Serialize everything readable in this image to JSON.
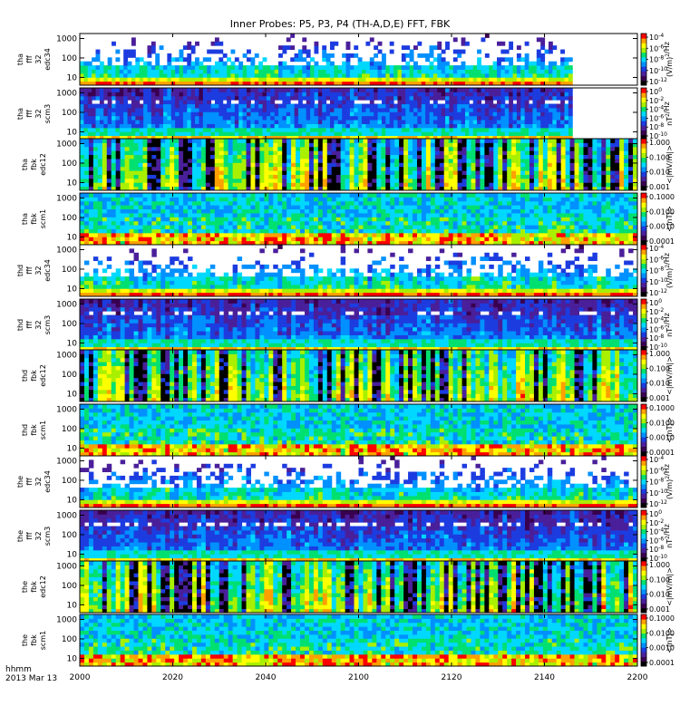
{
  "chart_data": {
    "type": "heatmap",
    "title": "Inner Probes: P5, P3, P4 (TH-A,D,E) FFT, FBK",
    "date_label": [
      "hhmm",
      "2013 Mar 13"
    ],
    "x_axis": {
      "range": [
        "2000",
        "2200"
      ],
      "ticks": [
        "2000",
        "2020",
        "2040",
        "2100",
        "2120",
        "2140",
        "2200"
      ]
    },
    "y_axis": {
      "scale": "log",
      "range": [
        4,
        1800
      ],
      "ticks": [
        "10",
        "100",
        "1000"
      ]
    },
    "colorscale": [
      "#000000",
      "#3a0050",
      "#4a1f9a",
      "#1c3ce0",
      "#0090ff",
      "#00d8ff",
      "#00e070",
      "#a8f000",
      "#ffff00",
      "#ffa000",
      "#ff0000"
    ],
    "panels": [
      {
        "labels": [
          "tha",
          "fff",
          "32",
          "edc34"
        ],
        "colorbar": {
          "ticks": [
            "10<sup>-4</sup>",
            "10<sup>-6</sup>",
            "10<sup>-8</sup>",
            "10<sup>-10</sup>",
            "10<sup>-12</sup>"
          ],
          "unit": "(V/m)<sup>2</sup>/Hz"
        },
        "data_end": "2146",
        "type": "fff_e"
      },
      {
        "labels": [
          "tha",
          "fff",
          "32",
          "scm3"
        ],
        "colorbar": {
          "ticks": [
            "10<sup>0</sup>",
            "10<sup>-2</sup>",
            "10<sup>-4</sup>",
            "10<sup>-6</sup>",
            "10<sup>-8</sup>",
            "10<sup>-10</sup>"
          ],
          "unit": "nT<sup>2</sup>/Hz"
        },
        "data_end": "2146",
        "type": "fff_b"
      },
      {
        "labels": [
          "tha",
          "fbk",
          "edc12"
        ],
        "colorbar": {
          "ticks": [
            "1.000",
            "0.100",
            "0.010",
            "0.001"
          ],
          "unit": "<|mV/m|>"
        },
        "data_end": "2200",
        "type": "fbk_e"
      },
      {
        "labels": [
          "tha",
          "fbk",
          "scm1"
        ],
        "colorbar": {
          "ticks": [
            "0.1000",
            "0.0100",
            "0.0010",
            "0.0001"
          ],
          "unit": "<|nT|>"
        },
        "data_end": "2200",
        "type": "fbk_b"
      },
      {
        "labels": [
          "thd",
          "fff",
          "32",
          "edc34"
        ],
        "colorbar": {
          "ticks": [
            "10<sup>-4</sup>",
            "10<sup>-6</sup>",
            "10<sup>-8</sup>",
            "10<sup>-10</sup>",
            "10<sup>-12</sup>"
          ],
          "unit": "(V/m)<sup>2</sup>/Hz"
        },
        "data_end": "2200",
        "type": "fff_e"
      },
      {
        "labels": [
          "thd",
          "fff",
          "32",
          "scm3"
        ],
        "colorbar": {
          "ticks": [
            "10<sup>0</sup>",
            "10<sup>-2</sup>",
            "10<sup>-4</sup>",
            "10<sup>-6</sup>",
            "10<sup>-8</sup>",
            "10<sup>-10</sup>"
          ],
          "unit": "nT<sup>2</sup>/Hz"
        },
        "data_end": "2200",
        "type": "fff_b"
      },
      {
        "labels": [
          "thd",
          "fbk",
          "edc12"
        ],
        "colorbar": {
          "ticks": [
            "1.000",
            "0.100",
            "0.010",
            "0.001"
          ],
          "unit": "<|mV/m|>"
        },
        "data_end": "2200",
        "type": "fbk_e"
      },
      {
        "labels": [
          "thd",
          "fbk",
          "scm1"
        ],
        "colorbar": {
          "ticks": [
            "0.1000",
            "0.0100",
            "0.0010",
            "0.0001"
          ],
          "unit": "<|nT|>"
        },
        "data_end": "2200",
        "type": "fbk_b"
      },
      {
        "labels": [
          "the",
          "fff",
          "32",
          "edc34"
        ],
        "colorbar": {
          "ticks": [
            "10<sup>-4</sup>",
            "10<sup>-6</sup>",
            "10<sup>-8</sup>",
            "10<sup>-10</sup>",
            "10<sup>-12</sup>"
          ],
          "unit": "(V/m)<sup>2</sup>/Hz"
        },
        "data_end": "2200",
        "type": "fff_e"
      },
      {
        "labels": [
          "the",
          "fff",
          "32",
          "scm3"
        ],
        "colorbar": {
          "ticks": [
            "10<sup>0</sup>",
            "10<sup>-2</sup>",
            "10<sup>-4</sup>",
            "10<sup>-6</sup>",
            "10<sup>-8</sup>",
            "10<sup>-10</sup>"
          ],
          "unit": "nT<sup>2</sup>/Hz"
        },
        "data_end": "2200",
        "type": "fff_b"
      },
      {
        "labels": [
          "the",
          "fbk",
          "edc12"
        ],
        "colorbar": {
          "ticks": [
            "1.000",
            "0.100",
            "0.010",
            "0.001"
          ],
          "unit": "<|mV/m|>"
        },
        "data_end": "2200",
        "type": "fbk_e"
      },
      {
        "labels": [
          "the",
          "fbk",
          "scm1"
        ],
        "colorbar": {
          "ticks": [
            "0.1000",
            "0.0100",
            "0.0010",
            "0.0001"
          ],
          "unit": "<|nT|>"
        },
        "data_end": "2200",
        "type": "fbk_b"
      }
    ]
  }
}
